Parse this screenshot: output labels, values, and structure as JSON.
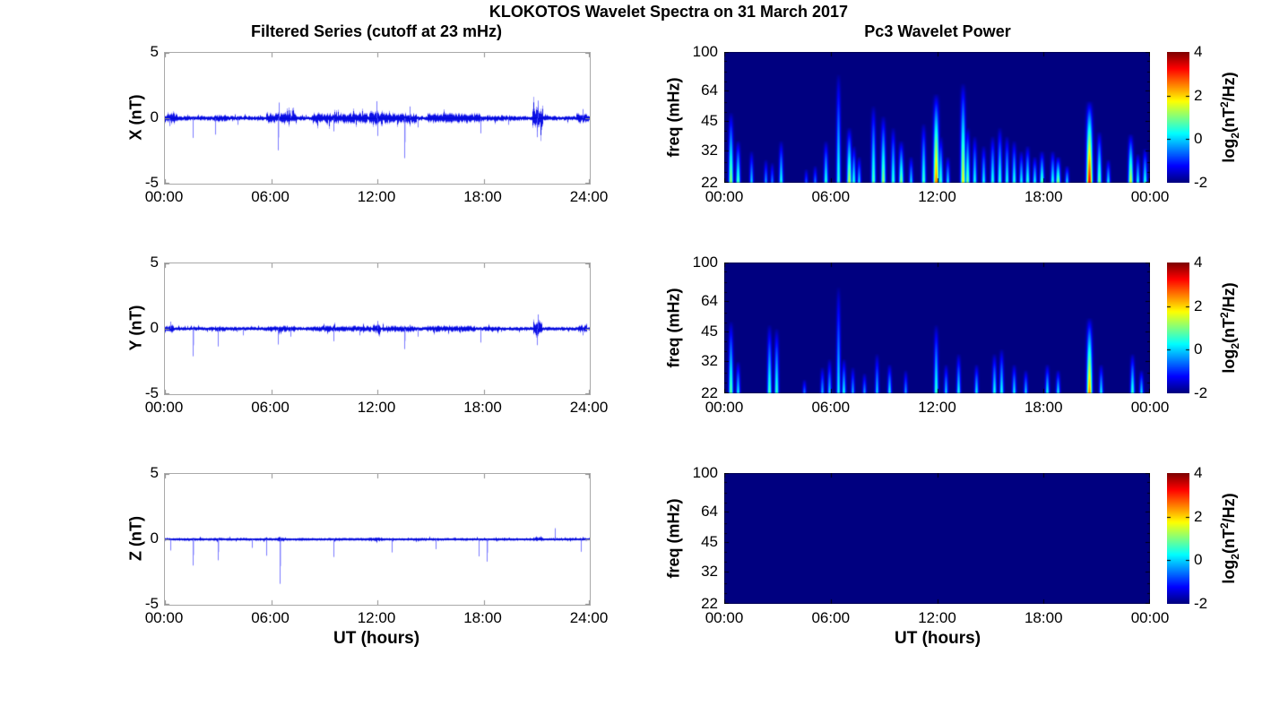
{
  "figure": {
    "title": "KLOKOTOS Wavelet Spectra on 31 March 2017",
    "background_color": "#FFFFFF",
    "series_color": "#0000EE",
    "spectrogram_background_color": "#00008B",
    "colormap": "jet"
  },
  "chart_data": [
    {
      "type": "line",
      "title": "Filtered Series (cutoff at 23 mHz)",
      "name": "X filtered series",
      "ylabel": "X (nT)",
      "ylim": [
        -5,
        5
      ],
      "yticks": [
        "5",
        "0",
        "-5"
      ],
      "xticks": [
        "00:00",
        "06:00",
        "12:00",
        "18:00",
        "24:00"
      ],
      "x_range_hours": [
        0,
        24
      ],
      "noise_base_nT": 0.1,
      "noise_bursts_start_end_amp": [
        [
          0.0,
          0.7,
          0.22
        ],
        [
          2.7,
          3.5,
          0.14
        ],
        [
          5.7,
          7.4,
          0.24
        ],
        [
          8.3,
          11.4,
          0.22
        ],
        [
          11.5,
          12.3,
          0.3
        ],
        [
          12.3,
          14.2,
          0.22
        ],
        [
          14.8,
          17.8,
          0.2
        ],
        [
          17.8,
          19.5,
          0.13
        ],
        [
          20.75,
          21.35,
          0.5
        ],
        [
          23.2,
          23.9,
          0.2
        ]
      ],
      "spikes_hour_nT": [
        [
          0.25,
          -0.6
        ],
        [
          1.55,
          -1.5
        ],
        [
          2.85,
          -1.25
        ],
        [
          4.1,
          -0.5
        ],
        [
          6.4,
          -2.45
        ],
        [
          6.45,
          1.2
        ],
        [
          7.1,
          0.6
        ],
        [
          9.5,
          -1.0
        ],
        [
          11.95,
          1.3
        ],
        [
          12.0,
          -1.35
        ],
        [
          13.5,
          -3.05
        ],
        [
          13.8,
          0.9
        ],
        [
          14.3,
          -0.7
        ],
        [
          17.8,
          -1.15
        ],
        [
          19.4,
          -0.5
        ],
        [
          21.0,
          -1.45
        ],
        [
          21.05,
          1.35
        ],
        [
          23.6,
          0.7
        ]
      ]
    },
    {
      "type": "heatmap",
      "title": "Pc3 Wavelet Power",
      "name": "X wavelet power",
      "ylabel": "freq (mHz)",
      "yticks": [
        "100",
        "64",
        "45",
        "32",
        "22"
      ],
      "minor_freq_ticks": [
        25,
        28,
        36,
        40,
        50,
        56,
        71,
        80,
        90
      ],
      "freq_range_mHz": [
        22,
        100
      ],
      "freq_scale": "log",
      "xticks": [
        "00:00",
        "06:00",
        "12:00",
        "18:00",
        "00:00"
      ],
      "x_range_hours": [
        0,
        24
      ],
      "background_value": -2,
      "colorbar": {
        "label_parts": [
          "log",
          "2",
          "(nT",
          "2",
          "/Hz)"
        ],
        "ticks": [
          "4",
          "2",
          "0",
          "-2"
        ],
        "range": [
          -2,
          4
        ]
      },
      "events_hour_fmax_log2power": [
        [
          0.35,
          50,
          1.3
        ],
        [
          0.76,
          36,
          0.9
        ],
        [
          1.5,
          32,
          0.1
        ],
        [
          2.3,
          29,
          -0.2
        ],
        [
          2.7,
          28,
          -0.4
        ],
        [
          3.2,
          36,
          0.5
        ],
        [
          4.6,
          26,
          -0.6
        ],
        [
          5.1,
          27,
          -0.4
        ],
        [
          5.7,
          36,
          0.6
        ],
        [
          6.4,
          78,
          0.6
        ],
        [
          7.0,
          42,
          1.5
        ],
        [
          7.3,
          34,
          0.6
        ],
        [
          7.6,
          30,
          0.1
        ],
        [
          8.4,
          54,
          0.9
        ],
        [
          8.95,
          48,
          1.3
        ],
        [
          9.5,
          42,
          0.7
        ],
        [
          9.95,
          36,
          1.2
        ],
        [
          10.5,
          30,
          0.2
        ],
        [
          11.2,
          44,
          0.8
        ],
        [
          11.9,
          62,
          2.7
        ],
        [
          12.2,
          38,
          0.8
        ],
        [
          12.6,
          30,
          0.2
        ],
        [
          13.45,
          70,
          1.8
        ],
        [
          13.7,
          42,
          1.1
        ],
        [
          14.1,
          38,
          0.5
        ],
        [
          14.6,
          34,
          0.4
        ],
        [
          15.1,
          38,
          0.6
        ],
        [
          15.5,
          42,
          0.7
        ],
        [
          15.9,
          38,
          0.5
        ],
        [
          16.3,
          36,
          0.6
        ],
        [
          16.7,
          32,
          0.4
        ],
        [
          17.1,
          34,
          0.7
        ],
        [
          17.5,
          30,
          0.4
        ],
        [
          17.9,
          32,
          0.9
        ],
        [
          18.5,
          32,
          0.6
        ],
        [
          18.8,
          30,
          1.3
        ],
        [
          19.3,
          27,
          0.2
        ],
        [
          20.55,
          57,
          3.5
        ],
        [
          21.1,
          40,
          1.1
        ],
        [
          21.6,
          29,
          0.3
        ],
        [
          22.9,
          39,
          1.7
        ],
        [
          23.3,
          31,
          0.4
        ],
        [
          23.7,
          33,
          0.6
        ]
      ]
    },
    {
      "type": "line",
      "name": "Y filtered series",
      "ylabel": "Y (nT)",
      "ylim": [
        -5,
        5
      ],
      "yticks": [
        "5",
        "0",
        "-5"
      ],
      "xticks": [
        "00:00",
        "06:00",
        "12:00",
        "18:00",
        "24:00"
      ],
      "x_range_hours": [
        0,
        24
      ],
      "noise_base_nT": 0.08,
      "noise_bursts_start_end_amp": [
        [
          0.0,
          0.5,
          0.16
        ],
        [
          2.8,
          3.4,
          0.12
        ],
        [
          5.8,
          7.3,
          0.13
        ],
        [
          8.3,
          11.6,
          0.13
        ],
        [
          11.7,
          12.2,
          0.18
        ],
        [
          12.3,
          14.2,
          0.13
        ],
        [
          14.8,
          17.5,
          0.13
        ],
        [
          18.0,
          19.0,
          0.1
        ],
        [
          20.8,
          21.3,
          0.34
        ],
        [
          23.3,
          23.8,
          0.15
        ]
      ],
      "spikes_hour_nT": [
        [
          0.3,
          0.55
        ],
        [
          1.55,
          -2.1
        ],
        [
          3.0,
          -1.35
        ],
        [
          4.4,
          -0.5
        ],
        [
          6.4,
          -1.2
        ],
        [
          7.1,
          -0.6
        ],
        [
          9.5,
          -0.95
        ],
        [
          11.0,
          -0.5
        ],
        [
          12.0,
          0.6
        ],
        [
          13.5,
          -1.55
        ],
        [
          14.3,
          -0.6
        ],
        [
          17.8,
          -1.05
        ],
        [
          21.0,
          -1.25
        ],
        [
          21.05,
          1.1
        ],
        [
          23.6,
          -0.5
        ]
      ]
    },
    {
      "type": "heatmap",
      "name": "Y wavelet power",
      "ylabel": "freq (mHz)",
      "yticks": [
        "100",
        "64",
        "45",
        "32",
        "22"
      ],
      "minor_freq_ticks": [
        25,
        28,
        36,
        40,
        50,
        56,
        71,
        80,
        90
      ],
      "freq_range_mHz": [
        22,
        100
      ],
      "freq_scale": "log",
      "xticks": [
        "00:00",
        "06:00",
        "12:00",
        "18:00",
        "00:00"
      ],
      "x_range_hours": [
        0,
        24
      ],
      "background_value": -2,
      "colorbar": {
        "label_parts": [
          "log",
          "2",
          "(nT",
          "2",
          "/Hz)"
        ],
        "ticks": [
          "4",
          "2",
          "0",
          "-2"
        ],
        "range": [
          -2,
          4
        ]
      },
      "events_hour_fmax_log2power": [
        [
          0.35,
          51,
          1.0
        ],
        [
          0.76,
          32,
          0.3
        ],
        [
          2.55,
          49,
          0.8
        ],
        [
          2.95,
          47,
          0.7
        ],
        [
          4.5,
          26,
          -0.4
        ],
        [
          5.5,
          30,
          -0.1
        ],
        [
          5.9,
          33,
          0.1
        ],
        [
          6.4,
          76,
          0.3
        ],
        [
          6.7,
          33,
          0.4
        ],
        [
          7.2,
          30,
          -0.1
        ],
        [
          7.9,
          28,
          -0.2
        ],
        [
          8.6,
          35,
          0.1
        ],
        [
          9.3,
          31,
          0.3
        ],
        [
          10.2,
          29,
          -0.2
        ],
        [
          11.9,
          49,
          0.7
        ],
        [
          12.5,
          31,
          0.1
        ],
        [
          13.2,
          35,
          0.4
        ],
        [
          14.2,
          31,
          0.3
        ],
        [
          15.2,
          35,
          0.5
        ],
        [
          15.6,
          37,
          0.5
        ],
        [
          16.3,
          31,
          0.3
        ],
        [
          17.0,
          29,
          0.1
        ],
        [
          18.2,
          31,
          0.4
        ],
        [
          18.8,
          29,
          0.3
        ],
        [
          20.55,
          53,
          2.6
        ],
        [
          21.2,
          31,
          0.3
        ],
        [
          23.0,
          35,
          0.7
        ],
        [
          23.5,
          29,
          0.2
        ]
      ]
    },
    {
      "type": "line",
      "name": "Z filtered series",
      "ylabel": "Z (nT)",
      "xlabel": "UT (hours)",
      "ylim": [
        -5,
        5
      ],
      "yticks": [
        "5",
        "0",
        "-5"
      ],
      "xticks": [
        "00:00",
        "06:00",
        "12:00",
        "18:00",
        "24:00"
      ],
      "x_range_hours": [
        0,
        24
      ],
      "noise_base_nT": 0.06,
      "noise_bursts_start_end_amp": [
        [
          6.3,
          6.7,
          0.1
        ],
        [
          11.5,
          12.3,
          0.08
        ],
        [
          20.8,
          21.3,
          0.09
        ]
      ],
      "spikes_hour_nT": [
        [
          0.3,
          -0.85
        ],
        [
          1.55,
          -2.0
        ],
        [
          3.0,
          -1.6
        ],
        [
          4.9,
          -0.65
        ],
        [
          5.7,
          -1.25
        ],
        [
          6.5,
          -3.4
        ],
        [
          9.5,
          -1.35
        ],
        [
          12.8,
          -1.0
        ],
        [
          15.3,
          -0.75
        ],
        [
          17.7,
          -1.3
        ],
        [
          18.2,
          -1.7
        ],
        [
          22.0,
          0.85
        ],
        [
          23.5,
          -0.95
        ]
      ]
    },
    {
      "type": "heatmap",
      "name": "Z wavelet power",
      "ylabel": "freq (mHz)",
      "xlabel": "UT (hours)",
      "yticks": [
        "100",
        "64",
        "45",
        "32",
        "22"
      ],
      "minor_freq_ticks": [
        25,
        28,
        36,
        40,
        50,
        56,
        71,
        80,
        90
      ],
      "freq_range_mHz": [
        22,
        100
      ],
      "freq_scale": "log",
      "xticks": [
        "00:00",
        "06:00",
        "12:00",
        "18:00",
        "00:00"
      ],
      "x_range_hours": [
        0,
        24
      ],
      "background_value": -2,
      "colorbar": {
        "label_parts": [
          "log",
          "2",
          "(nT",
          "2",
          "/Hz)"
        ],
        "ticks": [
          "4",
          "2",
          "0",
          "-2"
        ],
        "range": [
          -2,
          4
        ]
      },
      "events_hour_fmax_log2power": []
    }
  ]
}
